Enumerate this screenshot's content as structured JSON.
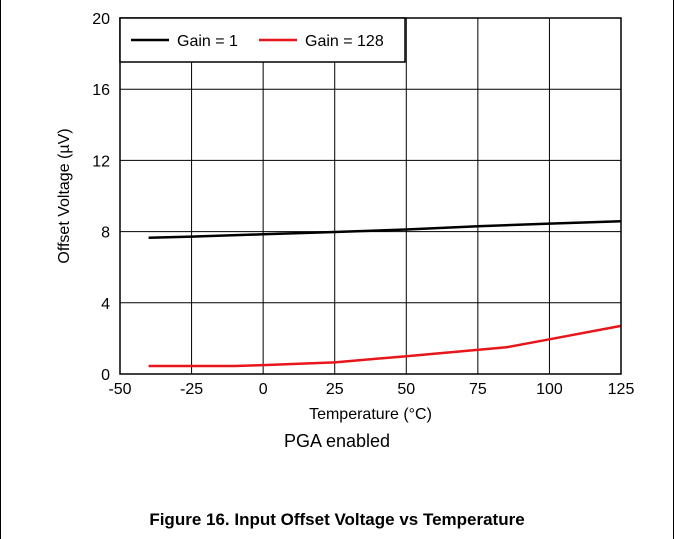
{
  "chart_data": {
    "type": "line",
    "title": "",
    "xlabel": "Temperature (°C)",
    "ylabel": "Offset Voltage (µV)",
    "xlim": [
      -50,
      125
    ],
    "ylim": [
      0,
      20
    ],
    "xticks": [
      "-50",
      "-25",
      "0",
      "25",
      "50",
      "75",
      "100",
      "125"
    ],
    "yticks": [
      "0",
      "4",
      "8",
      "12",
      "16",
      "20"
    ],
    "grid": true,
    "legend_position": "top-left",
    "series": [
      {
        "name": "Gain = 1",
        "color": "#000000",
        "x": [
          -40,
          -25,
          0,
          25,
          50,
          75,
          100,
          125
        ],
        "y": [
          7.65,
          7.72,
          7.85,
          7.98,
          8.12,
          8.3,
          8.45,
          8.58
        ]
      },
      {
        "name": "Gain = 128",
        "color": "#e8161b",
        "x": [
          -40,
          -25,
          -10,
          0,
          25,
          50,
          85,
          100,
          125
        ],
        "y": [
          0.45,
          0.45,
          0.45,
          0.5,
          0.65,
          1.0,
          1.5,
          1.95,
          2.7
        ]
      }
    ]
  },
  "subtitle": "PGA enabled",
  "caption": "Figure 16. Input Offset Voltage vs Temperature"
}
